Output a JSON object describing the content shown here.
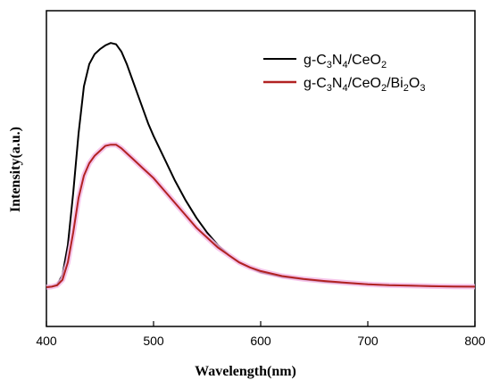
{
  "chart_data": {
    "type": "line",
    "title": "",
    "xlabel": "Wavelength(nm)",
    "ylabel": "Intensity(a.u.)",
    "xlim": [
      400,
      800
    ],
    "ylim": [
      0,
      1.0
    ],
    "x_ticks": [
      "400",
      "500",
      "600",
      "700",
      "800"
    ],
    "y_ticks_shown": false,
    "grid": false,
    "legend_position": "top-right",
    "legend": {
      "series1": {
        "base": "g-C",
        "sub1": "3",
        "mid1": "N",
        "sub2": "4",
        "mid2": "/CeO",
        "sub3": "2"
      },
      "series2": {
        "base": "g-C",
        "sub1": "3",
        "mid1": "N",
        "sub2": "4",
        "mid2": "/CeO",
        "sub3": "2",
        "mid3": "/Bi",
        "sub4": "2",
        "mid4": "O",
        "sub5": "3"
      }
    },
    "series": [
      {
        "name": "g-C3N4/CeO2",
        "color": "#000000",
        "x": [
          400,
          405,
          410,
          415,
          420,
          425,
          430,
          435,
          440,
          445,
          450,
          455,
          460,
          465,
          470,
          475,
          480,
          485,
          490,
          495,
          500,
          510,
          520,
          530,
          540,
          550,
          560,
          570,
          580,
          590,
          600,
          620,
          640,
          660,
          680,
          700,
          720,
          740,
          760,
          780,
          800
        ],
        "y": [
          0.0,
          0.002,
          0.01,
          0.05,
          0.17,
          0.38,
          0.62,
          0.81,
          0.9,
          0.94,
          0.96,
          0.975,
          0.985,
          0.98,
          0.95,
          0.9,
          0.84,
          0.78,
          0.72,
          0.66,
          0.61,
          0.52,
          0.43,
          0.35,
          0.28,
          0.22,
          0.17,
          0.13,
          0.1,
          0.08,
          0.06,
          0.042,
          0.032,
          0.022,
          0.017,
          0.012,
          0.008,
          0.006,
          0.004,
          0.003,
          0.002
        ]
      },
      {
        "name": "g-C3N4/CeO2/Bi2O3",
        "color": "#b22222",
        "x": [
          400,
          405,
          410,
          415,
          420,
          425,
          430,
          435,
          440,
          445,
          450,
          455,
          460,
          465,
          470,
          475,
          480,
          485,
          490,
          495,
          500,
          510,
          520,
          530,
          540,
          550,
          560,
          570,
          580,
          590,
          600,
          620,
          640,
          660,
          680,
          700,
          720,
          740,
          760,
          780,
          800
        ],
        "y": [
          0.0,
          0.002,
          0.008,
          0.03,
          0.1,
          0.22,
          0.36,
          0.45,
          0.5,
          0.53,
          0.55,
          0.57,
          0.575,
          0.575,
          0.56,
          0.54,
          0.52,
          0.5,
          0.48,
          0.46,
          0.44,
          0.39,
          0.34,
          0.29,
          0.24,
          0.2,
          0.16,
          0.13,
          0.1,
          0.08,
          0.065,
          0.045,
          0.033,
          0.025,
          0.018,
          0.012,
          0.008,
          0.006,
          0.004,
          0.003,
          0.002
        ]
      }
    ]
  }
}
